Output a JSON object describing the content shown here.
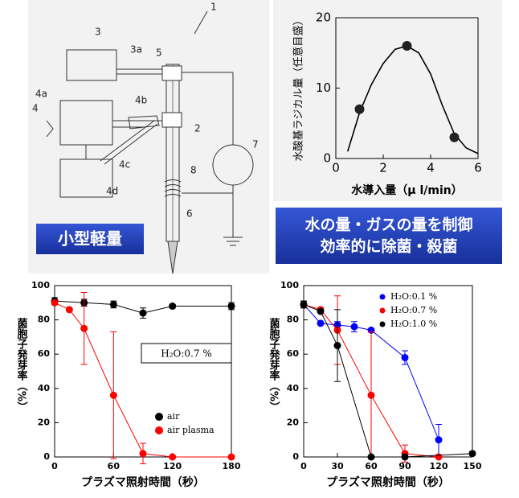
{
  "diagram": {
    "labels": [
      "1",
      "3",
      "3a",
      "5",
      "4a",
      "4",
      "4b",
      "2",
      "7",
      "8",
      "4c",
      "4d",
      "6"
    ],
    "caption": "小型軽量"
  },
  "banner": {
    "lines": [
      "水の量・ガスの量を制御",
      "効率的に除菌・殺菌"
    ]
  },
  "chart_data": [
    {
      "type": "line",
      "y_label": "水酸基ラジカル量（任意目盛）",
      "x_label": "水導入量（μ l/min）",
      "xlim": [
        0,
        6
      ],
      "xticks": [
        0,
        2,
        4,
        6
      ],
      "ylim": [
        0,
        20
      ],
      "yticks": [
        0,
        10,
        20
      ],
      "series": [
        {
          "mode": "lines",
          "color": "#000000",
          "x": [
            0.5,
            1,
            1.5,
            2,
            2.5,
            3,
            3.5,
            4,
            4.5,
            5,
            5.5,
            6
          ],
          "values": [
            1,
            6.5,
            10.5,
            13.5,
            15.5,
            16,
            15,
            12,
            7.5,
            3.5,
            1.5,
            0.7
          ]
        },
        {
          "mode": "markers",
          "color": "#222222",
          "x": [
            1,
            3,
            5
          ],
          "values": [
            7,
            16,
            3
          ]
        }
      ]
    },
    {
      "type": "line",
      "y_label": "菌胞子発芽率（%）",
      "x_label": "プラズマ照射時間（秒）",
      "annotation": "H₂O:0.7 %",
      "legend": "lower right",
      "xlim": [
        0,
        180
      ],
      "xticks": [
        0,
        60,
        120,
        180
      ],
      "ylim": [
        0,
        100
      ],
      "yticks": [
        0,
        20,
        40,
        60,
        80,
        100
      ],
      "series": [
        {
          "name": "air",
          "mode": "lines+markers",
          "color": "#000000",
          "x": [
            0,
            30,
            60,
            90,
            120,
            180
          ],
          "values": [
            91,
            90,
            89,
            84,
            88,
            88
          ],
          "errors": [
            2,
            2,
            2,
            3,
            1,
            2
          ]
        },
        {
          "name": "air plasma",
          "mode": "lines+markers",
          "color": "#ff0000",
          "x": [
            0,
            15,
            30,
            60,
            90,
            120,
            180
          ],
          "values": [
            90,
            86,
            75,
            36,
            2,
            0,
            0
          ],
          "errors": [
            null,
            null,
            21,
            37,
            6,
            null,
            null
          ]
        }
      ]
    },
    {
      "type": "line",
      "y_label": "菌胞子発芽率（%）",
      "x_label": "プラズマ照射時間（秒）",
      "legend": "upper right",
      "xlim": [
        0,
        150
      ],
      "xticks": [
        0,
        30,
        60,
        90,
        120,
        150
      ],
      "ylim": [
        0,
        100
      ],
      "yticks": [
        0,
        20,
        40,
        60,
        80,
        100
      ],
      "series": [
        {
          "name": "H₂O:0.1 %",
          "mode": "lines+markers",
          "color": "#0000ff",
          "x": [
            0,
            15,
            30,
            45,
            60,
            90,
            120
          ],
          "values": [
            89,
            78,
            77,
            76,
            74,
            58,
            10
          ],
          "errors": [
            2,
            null,
            2,
            3,
            null,
            4,
            9
          ]
        },
        {
          "name": "H₂O:0.7 %",
          "mode": "lines+markers",
          "color": "#ff0000",
          "x": [
            0,
            15,
            30,
            60,
            90,
            120
          ],
          "values": [
            89,
            86,
            74,
            36,
            2,
            0
          ],
          "errors": [
            2,
            null,
            20,
            37,
            5,
            null
          ]
        },
        {
          "name": "H₂O:1.0 %",
          "mode": "lines+markers",
          "color": "#000000",
          "x": [
            0,
            15,
            30,
            60,
            90,
            150
          ],
          "values": [
            89,
            85,
            65,
            0,
            0,
            2
          ],
          "errors": [
            2,
            null,
            21,
            null,
            null,
            1
          ]
        }
      ]
    }
  ]
}
